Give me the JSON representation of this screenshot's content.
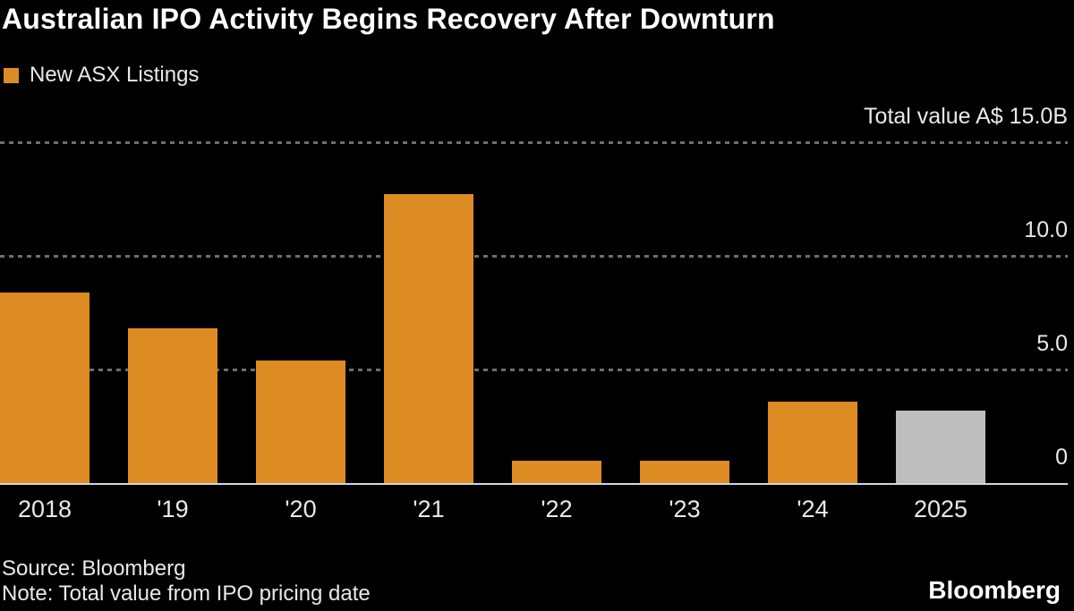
{
  "header": {
    "title": "Australian IPO Activity Begins Recovery After Downturn",
    "legend": {
      "label": "New ASX Listings",
      "swatch_color": "#DD8B23"
    }
  },
  "chart_data": {
    "type": "bar",
    "title": "Australian IPO Activity Begins Recovery After Downturn",
    "legend_entries": [
      "New ASX Listings"
    ],
    "legend_position": "top-left",
    "categories": [
      "2018",
      "'19",
      "'20",
      "'21",
      "'22",
      "'23",
      "'24",
      "2025"
    ],
    "values": [
      8.4,
      6.8,
      5.4,
      12.7,
      1.0,
      1.0,
      3.6,
      3.2
    ],
    "bar_colors": [
      "#DD8B23",
      "#DD8B23",
      "#DD8B23",
      "#DD8B23",
      "#DD8B23",
      "#DD8B23",
      "#DD8B23",
      "#BEBEBE"
    ],
    "xlabel": "",
    "ylabel": "Total value A$ (billions)",
    "ylim": [
      0,
      15
    ],
    "grid": true,
    "yticks": [
      {
        "value": 15,
        "label": "Total value A$ 15.0B",
        "style": "dashed"
      },
      {
        "value": 10,
        "label": "10.0",
        "style": "dashed"
      },
      {
        "value": 5,
        "label": "5.0",
        "style": "dashed"
      },
      {
        "value": 0,
        "label": "0",
        "style": "solid"
      }
    ]
  },
  "footer": {
    "source": "Source: Bloomberg",
    "note": "Note: Total value from IPO pricing date",
    "logo": "Bloomberg"
  },
  "colors": {
    "background": "#000000",
    "accent_orange": "#DD8B23",
    "highlight_gray": "#BEBEBE",
    "gridline": "#6E6E6E",
    "baseline": "#D6D6D6",
    "title_text": "#FFFFFF",
    "label_text": "#E9E9E7"
  }
}
